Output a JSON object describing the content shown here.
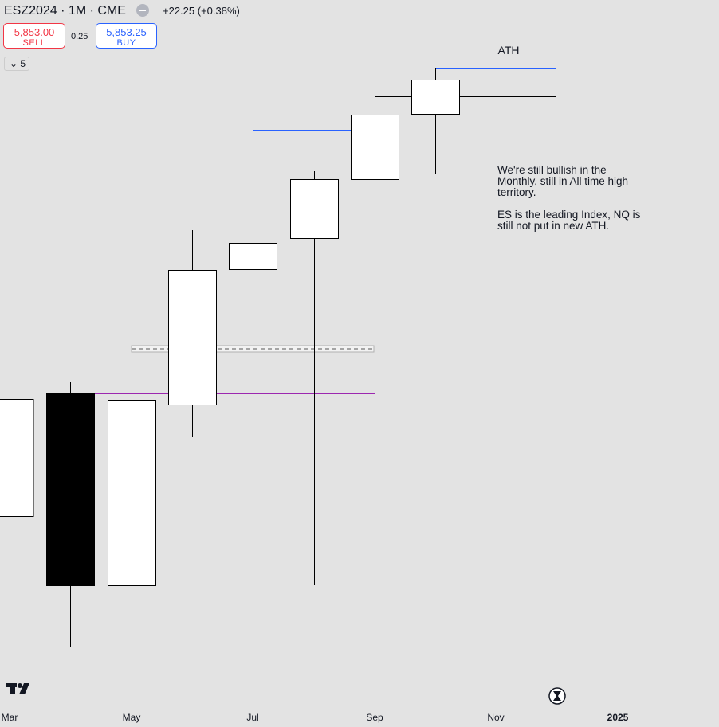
{
  "header": {
    "symbol": "ESZ2024 · 1M · CME",
    "change": "+22.25 (+0.38%)",
    "sell_price": "5,853.00",
    "sell_label": "SELL",
    "spread": "0.25",
    "buy_price": "5,853.25",
    "buy_label": "BUY",
    "indicator_count": "5"
  },
  "annotations": {
    "ath": "ATH",
    "note_1": "We're still bullish in the Monthly, still in All time high territory.",
    "note_2": "ES is the leading Index, NQ is still not put in new ATH."
  },
  "x_axis": {
    "labels": [
      "Mar",
      "May",
      "Jul",
      "Sep",
      "Nov",
      "2025"
    ]
  }
}
